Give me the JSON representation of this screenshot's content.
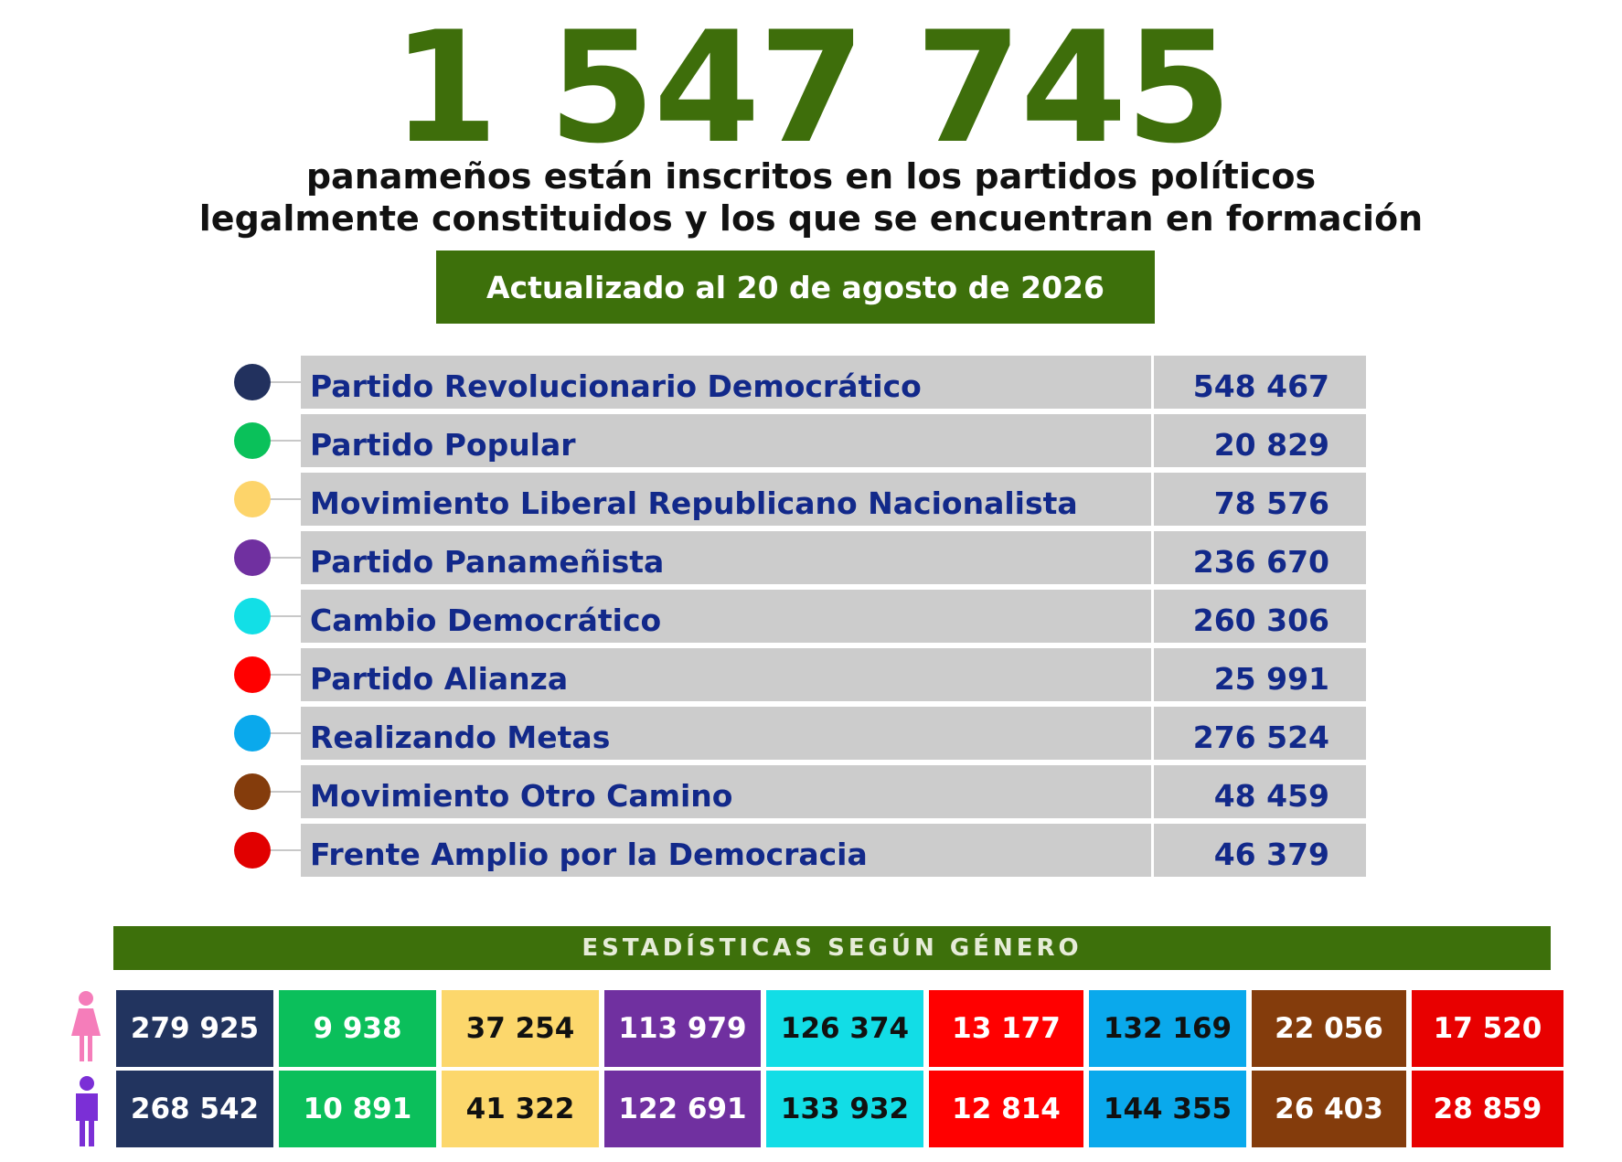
{
  "header": {
    "total": "1 547 745",
    "subtitle_line1": "panameños están inscritos en los partidos políticos",
    "subtitle_line2": "legalmente constituidos y los que se encuentran en formación",
    "updated": "Actualizado al 20 de agosto de 2026"
  },
  "parties": [
    {
      "name": "Partido Revolucionario Democrático",
      "value": "548 467",
      "color": "#22315e"
    },
    {
      "name": "Partido Popular",
      "value": "20 829",
      "color": "#0ac15a"
    },
    {
      "name": "Movimiento Liberal Republicano Nacionalista",
      "value": "78 576",
      "color": "#fdd46a"
    },
    {
      "name": "Partido Panameñista",
      "value": "236 670",
      "color": "#7030a0"
    },
    {
      "name": "Cambio Democrático",
      "value": "260 306",
      "color": "#12dfe6"
    },
    {
      "name": "Partido Alianza",
      "value": "25 991",
      "color": "#ff0000"
    },
    {
      "name": "Realizando Metas",
      "value": "276 524",
      "color": "#0aa9ec"
    },
    {
      "name": "Movimiento Otro Camino",
      "value": "48 459",
      "color": "#843c0c"
    },
    {
      "name": "Frente Amplio por la Democracia",
      "value": "46 379",
      "color": "#e10000"
    }
  ],
  "gender": {
    "title": "ESTADÍSTICAS SEGÚN GÉNERO",
    "female_icon_color": "#f57dba",
    "male_icon_color": "#7b2fd6",
    "female": [
      "279 925",
      "9 938",
      "37 254",
      "113 979",
      "126 374",
      "13 177",
      "132 169",
      "22 056",
      "17 520"
    ],
    "male": [
      "268 542",
      "10 891",
      "41 322",
      "122 691",
      "133 932",
      "12 814",
      "144 355",
      "26 403",
      "28 859"
    ],
    "cell_colors": [
      "#22345f",
      "#0bbf5b",
      "#fcd76c",
      "#7030a0",
      "#12dde6",
      "#ff0000",
      "#0aa9ec",
      "#843c0c",
      "#e80000"
    ],
    "text_colors": [
      "#ffffff",
      "#ffffff",
      "#111111",
      "#ffffff",
      "#111111",
      "#ffffff",
      "#111111",
      "#ffffff",
      "#ffffff"
    ]
  }
}
